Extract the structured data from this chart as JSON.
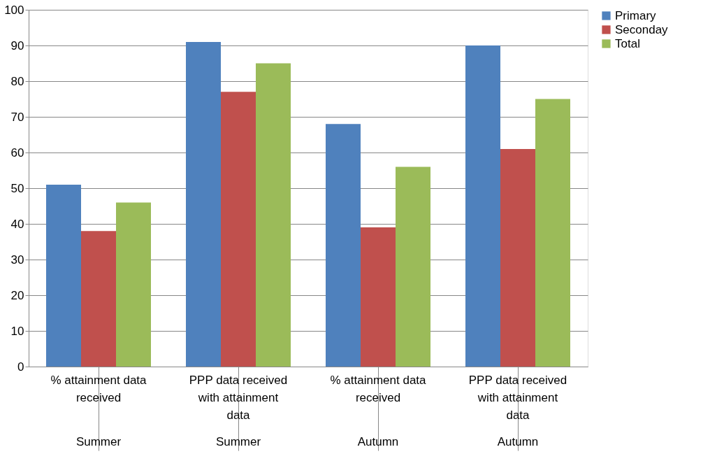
{
  "chart_data": {
    "type": "bar",
    "categories": [
      "% attainment data received",
      "PPP data received with attainment data",
      "% attainment data received",
      "PPP data received with attainment data"
    ],
    "series": [
      {
        "name": "Primary",
        "color": "#4f81bd",
        "values": [
          51,
          91,
          68,
          90
        ]
      },
      {
        "name": "Seconday",
        "color": "#c0504d",
        "values": [
          38,
          77,
          39,
          61
        ]
      },
      {
        "name": "Total",
        "color": "#9bbb59",
        "values": [
          46,
          85,
          56,
          75
        ]
      }
    ],
    "annotations": [
      "Summer",
      "Summer",
      "Autumn",
      "Autumn"
    ],
    "ylim": [
      0,
      100
    ],
    "yticks": [
      0,
      10,
      20,
      30,
      40,
      50,
      60,
      70,
      80,
      90,
      100
    ],
    "grid": "y",
    "legend": "right"
  }
}
